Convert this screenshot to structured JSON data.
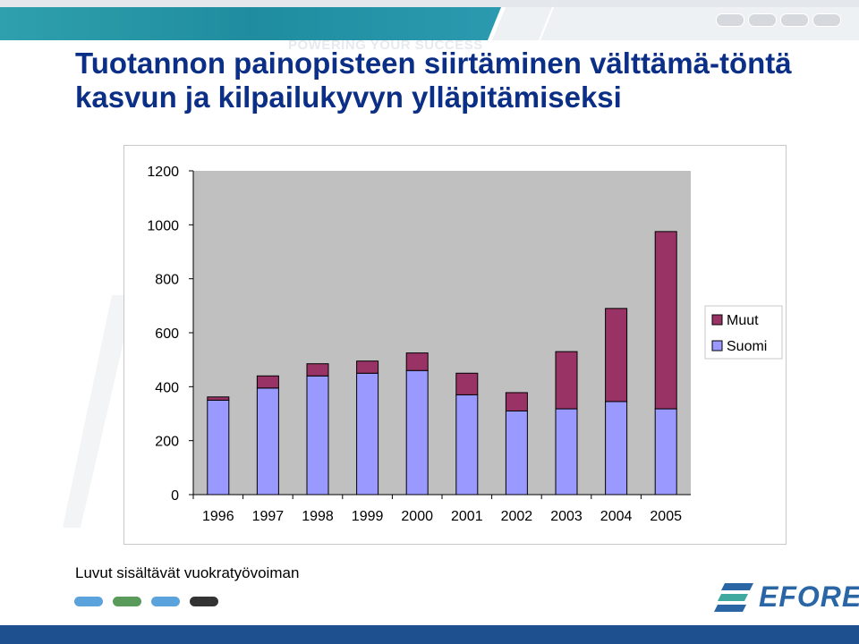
{
  "title": "Tuotannon painopisteen siirtäminen välttämä-töntä kasvun ja kilpailukyvyn ylläpitämiseksi",
  "header_watermark": "POWERING YOUR SUCCESS",
  "footnote": "Luvut sisältävät vuokratyövoiman",
  "logo_text": "EFORE",
  "colors": {
    "suomi": "#9999ff",
    "muut": "#993366",
    "plot_bg": "#c0c0c0",
    "title": "#0b2f86",
    "bottom_bar": "#1e4f8e",
    "pills": [
      "#5ba3dc",
      "#5a9a5a",
      "#5ba3dc",
      "#333333"
    ]
  },
  "chart_data": {
    "type": "bar",
    "stacked": true,
    "categories": [
      "1996",
      "1997",
      "1998",
      "1999",
      "2000",
      "2001",
      "2002",
      "2003",
      "2004",
      "2005"
    ],
    "series": [
      {
        "name": "Suomi",
        "values": [
          350,
          395,
          440,
          450,
          460,
          370,
          310,
          318,
          345,
          318
        ]
      },
      {
        "name": "Muut",
        "values": [
          12,
          45,
          45,
          45,
          65,
          80,
          68,
          212,
          345,
          657
        ]
      }
    ],
    "ylim": [
      0,
      1200
    ],
    "yticks": [
      0,
      200,
      400,
      600,
      800,
      1000,
      1200
    ],
    "grid": false,
    "legend_position": "right",
    "legend": [
      "Muut",
      "Suomi"
    ],
    "title": "",
    "xlabel": "",
    "ylabel": ""
  }
}
